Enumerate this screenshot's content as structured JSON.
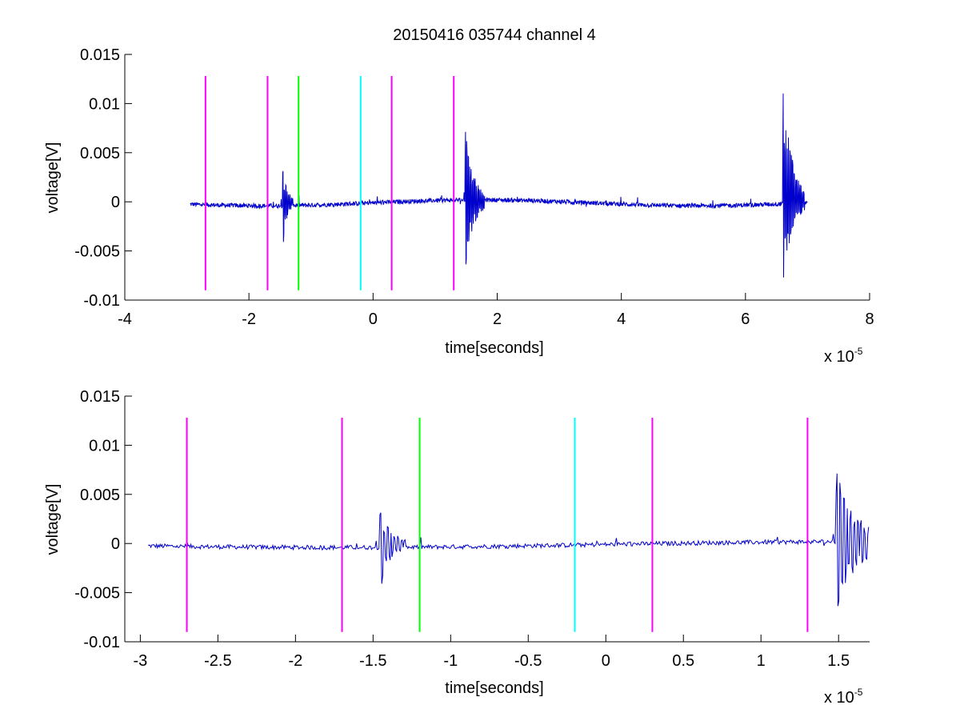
{
  "figure": {
    "title": "20150416 035744 channel 4",
    "background": "#ffffff"
  },
  "colors": {
    "signal": "#0000cc",
    "magenta": "#ff00ff",
    "green": "#00ff00",
    "cyan": "#00ffff",
    "axes": "#000000"
  },
  "chart_data": [
    {
      "type": "line",
      "title": "20150416 035744 channel 4",
      "xlabel": "time[seconds]",
      "ylabel": "voltage[V]",
      "x_scale_label": "x 10",
      "x_scale_exponent": "-5",
      "xlim": [
        -4,
        8
      ],
      "ylim": [
        -0.01,
        0.015
      ],
      "xticks": [
        -4,
        -2,
        0,
        2,
        4,
        6,
        8
      ],
      "xtick_labels": [
        "-4",
        "-2",
        "0",
        "2",
        "4",
        "6",
        "8"
      ],
      "yticks": [
        -0.01,
        -0.005,
        0,
        0.005,
        0.01,
        0.015
      ],
      "ytick_labels": [
        "-0.01",
        "-0.005",
        "0",
        "0.005",
        "0.01",
        "0.015"
      ],
      "grid": false,
      "legend": "none",
      "signal": {
        "x_start": -2.95,
        "x_end": 7.0,
        "baseline": 0.0,
        "bursts": [
          {
            "x": [
              -1.46,
              -1.28
            ],
            "min": -0.0043,
            "max": 0.0033
          },
          {
            "x": [
              1.48,
              1.8
            ],
            "min": -0.0067,
            "max": 0.0075
          },
          {
            "x": [
              6.6,
              6.95
            ],
            "min": -0.0081,
            "max": 0.0116
          }
        ]
      },
      "markers": [
        {
          "x": -2.7,
          "color": "magenta",
          "y": [
            -0.009,
            0.0128
          ]
        },
        {
          "x": -1.7,
          "color": "magenta",
          "y": [
            -0.009,
            0.0128
          ]
        },
        {
          "x": -1.2,
          "color": "green",
          "y": [
            -0.009,
            0.0128
          ]
        },
        {
          "x": -0.2,
          "color": "cyan",
          "y": [
            -0.009,
            0.0128
          ]
        },
        {
          "x": 0.3,
          "color": "magenta",
          "y": [
            -0.009,
            0.0128
          ]
        },
        {
          "x": 1.3,
          "color": "magenta",
          "y": [
            -0.009,
            0.0128
          ]
        }
      ]
    },
    {
      "type": "line",
      "title": "",
      "xlabel": "time[seconds]",
      "ylabel": "voltage[V]",
      "x_scale_label": "x 10",
      "x_scale_exponent": "-5",
      "xlim": [
        -3.1,
        1.7
      ],
      "ylim": [
        -0.01,
        0.015
      ],
      "xticks": [
        -3,
        -2.5,
        -2,
        -1.5,
        -1,
        -0.5,
        0,
        0.5,
        1,
        1.5
      ],
      "xtick_labels": [
        "-3",
        "-2.5",
        "-2",
        "-1.5",
        "-1",
        "-0.5",
        "0",
        "0.5",
        "1",
        "1.5"
      ],
      "yticks": [
        -0.01,
        -0.005,
        0,
        0.005,
        0.01,
        0.015
      ],
      "ytick_labels": [
        "-0.01",
        "-0.005",
        "0",
        "0.005",
        "0.01",
        "0.015"
      ],
      "grid": false,
      "legend": "none",
      "signal": {
        "x_start": -2.95,
        "x_end": 1.7,
        "baseline": 0.0,
        "bursts": [
          {
            "x": [
              -1.46,
              -1.28
            ],
            "min": -0.0043,
            "max": 0.0033
          },
          {
            "x": [
              1.48,
              1.7
            ],
            "min": -0.0067,
            "max": 0.0075
          }
        ]
      },
      "markers": [
        {
          "x": -2.7,
          "color": "magenta",
          "y": [
            -0.009,
            0.0128
          ]
        },
        {
          "x": -1.7,
          "color": "magenta",
          "y": [
            -0.009,
            0.0128
          ]
        },
        {
          "x": -1.2,
          "color": "green",
          "y": [
            -0.009,
            0.0128
          ]
        },
        {
          "x": -0.2,
          "color": "cyan",
          "y": [
            -0.009,
            0.0128
          ]
        },
        {
          "x": 0.3,
          "color": "magenta",
          "y": [
            -0.009,
            0.0128
          ]
        },
        {
          "x": 1.3,
          "color": "magenta",
          "y": [
            -0.009,
            0.0128
          ]
        }
      ]
    }
  ]
}
